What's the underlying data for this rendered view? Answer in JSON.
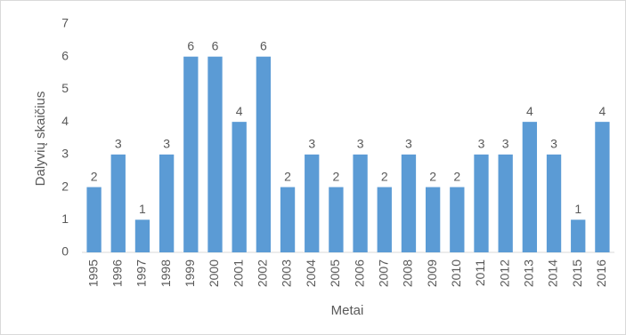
{
  "chart_data": {
    "type": "bar",
    "x_label": "Metai",
    "y_label": "Dalyvių skaičius",
    "categories": [
      "1995",
      "1996",
      "1997",
      "1998",
      "1999",
      "2000",
      "2001",
      "2002",
      "2003",
      "2004",
      "2005",
      "2006",
      "2007",
      "2008",
      "2009",
      "2010",
      "2011",
      "2012",
      "2013",
      "2014",
      "2015",
      "2016"
    ],
    "values": [
      2,
      3,
      1,
      3,
      6,
      6,
      4,
      6,
      2,
      3,
      2,
      3,
      2,
      3,
      2,
      2,
      3,
      3,
      4,
      3,
      1,
      4
    ],
    "color": "#5b9bd5",
    "ylim": [
      0,
      7
    ],
    "yticks": [
      0,
      1,
      2,
      3,
      4,
      5,
      6,
      7
    ],
    "grid": false,
    "data_labels": true
  }
}
